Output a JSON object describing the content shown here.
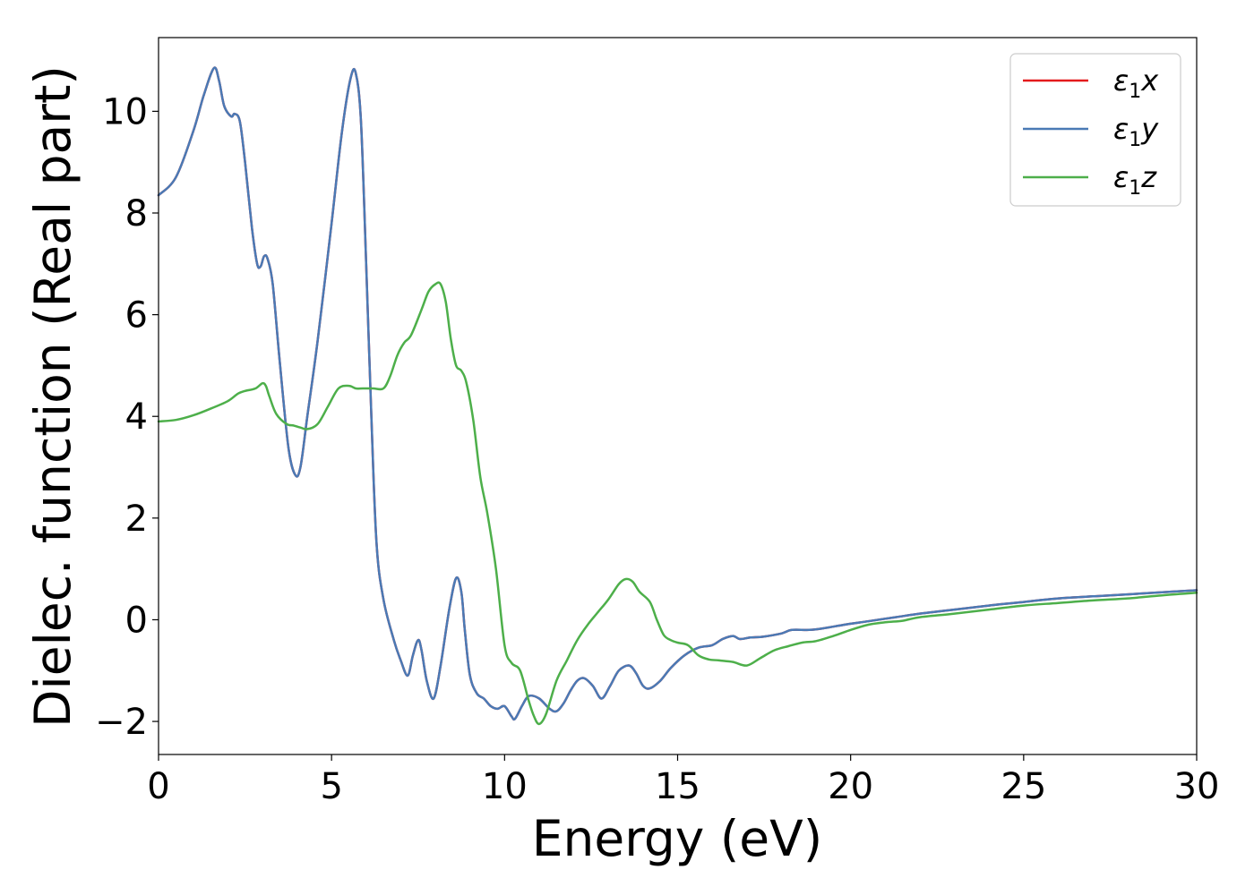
{
  "chart_data": {
    "type": "line",
    "title": "",
    "xlabel": "Energy (eV)",
    "ylabel": "Dielec. function (Real part)",
    "xlim": [
      0,
      30
    ],
    "ylim": [
      -2.65,
      11.45
    ],
    "xticks": [
      0,
      5,
      10,
      15,
      20,
      25,
      30
    ],
    "yticks": [
      -2,
      0,
      2,
      4,
      6,
      8,
      10
    ],
    "xtick_labels": [
      "0",
      "5",
      "10",
      "15",
      "20",
      "25",
      "30"
    ],
    "ytick_labels": [
      "−2",
      "0",
      "2",
      "4",
      "6",
      "8",
      "10"
    ],
    "grid": false,
    "legend_position": "top-right",
    "series": [
      {
        "name": "ε₁x",
        "legend": {
          "symbol": "ε",
          "sub": "1",
          "var": "x"
        },
        "color": "#e41a1c",
        "x": [
          0,
          0.5,
          1.0,
          1.3,
          1.6,
          1.75,
          1.9,
          2.1,
          2.2,
          2.35,
          2.5,
          2.7,
          2.85,
          2.95,
          3.05,
          3.15,
          3.3,
          3.5,
          3.75,
          3.95,
          4.1,
          4.3,
          4.6,
          5.0,
          5.3,
          5.55,
          5.7,
          5.85,
          6.0,
          6.15,
          6.3,
          6.5,
          6.8,
          7.0,
          7.2,
          7.35,
          7.5,
          7.6,
          7.75,
          7.95,
          8.15,
          8.4,
          8.6,
          8.75,
          8.85,
          9.0,
          9.2,
          9.4,
          9.6,
          9.8,
          10.0,
          10.2,
          10.3,
          10.5,
          10.7,
          11.0,
          11.3,
          11.5,
          11.7,
          11.9,
          12.1,
          12.3,
          12.55,
          12.8,
          13.05,
          13.3,
          13.6,
          13.8,
          14.0,
          14.2,
          14.5,
          14.8,
          15.2,
          15.6,
          16.0,
          16.3,
          16.6,
          16.8,
          17.1,
          17.5,
          18.0,
          18.3,
          18.8,
          19.2,
          19.8,
          20.5,
          21.3,
          22.0,
          23.0,
          24.0,
          25.0,
          26.0,
          27.0,
          28.0,
          29.0,
          30.0
        ],
        "y": [
          8.35,
          8.7,
          9.6,
          10.3,
          10.85,
          10.6,
          10.1,
          9.9,
          9.95,
          9.8,
          9.0,
          7.7,
          7.0,
          6.95,
          7.15,
          7.1,
          6.6,
          5.1,
          3.4,
          2.85,
          3.0,
          4.0,
          5.5,
          7.8,
          9.6,
          10.65,
          10.75,
          9.8,
          7.0,
          4.0,
          1.5,
          0.4,
          -0.4,
          -0.8,
          -1.1,
          -0.7,
          -0.4,
          -0.6,
          -1.2,
          -1.55,
          -0.9,
          0.2,
          0.82,
          0.55,
          -0.2,
          -1.1,
          -1.45,
          -1.55,
          -1.7,
          -1.75,
          -1.7,
          -1.9,
          -1.95,
          -1.7,
          -1.5,
          -1.55,
          -1.75,
          -1.8,
          -1.65,
          -1.4,
          -1.2,
          -1.15,
          -1.3,
          -1.55,
          -1.3,
          -1.0,
          -0.9,
          -1.05,
          -1.3,
          -1.35,
          -1.2,
          -0.95,
          -0.7,
          -0.55,
          -0.5,
          -0.38,
          -0.32,
          -0.38,
          -0.35,
          -0.33,
          -0.27,
          -0.2,
          -0.2,
          -0.17,
          -0.1,
          -0.03,
          0.05,
          0.12,
          0.2,
          0.28,
          0.35,
          0.42,
          0.46,
          0.5,
          0.54,
          0.58
        ]
      },
      {
        "name": "ε₁y",
        "legend": {
          "symbol": "ε",
          "sub": "1",
          "var": "y"
        },
        "color": "#4a7ab5",
        "x": [
          0,
          0.5,
          1.0,
          1.3,
          1.6,
          1.75,
          1.9,
          2.1,
          2.2,
          2.35,
          2.5,
          2.7,
          2.85,
          2.95,
          3.05,
          3.15,
          3.3,
          3.5,
          3.75,
          3.95,
          4.1,
          4.3,
          4.6,
          5.0,
          5.3,
          5.55,
          5.7,
          5.85,
          6.0,
          6.15,
          6.3,
          6.5,
          6.8,
          7.0,
          7.2,
          7.35,
          7.5,
          7.6,
          7.75,
          7.95,
          8.15,
          8.4,
          8.6,
          8.75,
          8.85,
          9.0,
          9.2,
          9.4,
          9.6,
          9.8,
          10.0,
          10.2,
          10.3,
          10.5,
          10.7,
          11.0,
          11.3,
          11.5,
          11.7,
          11.9,
          12.1,
          12.3,
          12.55,
          12.8,
          13.05,
          13.3,
          13.6,
          13.8,
          14.0,
          14.2,
          14.5,
          14.8,
          15.2,
          15.6,
          16.0,
          16.3,
          16.6,
          16.8,
          17.1,
          17.5,
          18.0,
          18.3,
          18.8,
          19.2,
          19.8,
          20.5,
          21.3,
          22.0,
          23.0,
          24.0,
          25.0,
          26.0,
          27.0,
          28.0,
          29.0,
          30.0
        ],
        "y": [
          8.35,
          8.7,
          9.6,
          10.3,
          10.85,
          10.6,
          10.1,
          9.9,
          9.95,
          9.8,
          9.0,
          7.7,
          7.0,
          6.95,
          7.15,
          7.1,
          6.6,
          5.1,
          3.4,
          2.85,
          3.0,
          4.0,
          5.5,
          7.8,
          9.6,
          10.65,
          10.75,
          9.8,
          7.0,
          4.0,
          1.5,
          0.4,
          -0.4,
          -0.8,
          -1.1,
          -0.7,
          -0.4,
          -0.6,
          -1.2,
          -1.55,
          -0.9,
          0.2,
          0.82,
          0.55,
          -0.2,
          -1.1,
          -1.45,
          -1.55,
          -1.7,
          -1.75,
          -1.7,
          -1.9,
          -1.95,
          -1.7,
          -1.5,
          -1.55,
          -1.75,
          -1.8,
          -1.65,
          -1.4,
          -1.2,
          -1.15,
          -1.3,
          -1.55,
          -1.3,
          -1.0,
          -0.9,
          -1.05,
          -1.3,
          -1.35,
          -1.2,
          -0.95,
          -0.7,
          -0.55,
          -0.5,
          -0.38,
          -0.32,
          -0.38,
          -0.35,
          -0.33,
          -0.27,
          -0.2,
          -0.2,
          -0.17,
          -0.1,
          -0.03,
          0.05,
          0.12,
          0.2,
          0.28,
          0.35,
          0.42,
          0.46,
          0.5,
          0.54,
          0.58
        ]
      },
      {
        "name": "ε₁z",
        "legend": {
          "symbol": "ε",
          "sub": "1",
          "var": "z"
        },
        "color": "#4daf4a",
        "x": [
          0,
          0.5,
          1.0,
          1.5,
          2.0,
          2.3,
          2.5,
          2.8,
          3.0,
          3.1,
          3.2,
          3.4,
          3.7,
          3.9,
          4.1,
          4.3,
          4.6,
          4.9,
          5.2,
          5.5,
          5.7,
          5.9,
          6.2,
          6.5,
          6.7,
          6.9,
          7.1,
          7.3,
          7.6,
          7.8,
          8.0,
          8.15,
          8.3,
          8.45,
          8.6,
          8.75,
          8.9,
          9.1,
          9.3,
          9.5,
          9.75,
          10.0,
          10.2,
          10.45,
          10.7,
          10.85,
          11.0,
          11.2,
          11.5,
          11.8,
          12.1,
          12.4,
          12.7,
          13.0,
          13.3,
          13.5,
          13.7,
          13.9,
          14.2,
          14.4,
          14.6,
          14.8,
          15.0,
          15.3,
          15.6,
          15.9,
          16.2,
          16.6,
          17.0,
          17.4,
          17.8,
          18.2,
          18.6,
          19.0,
          19.5,
          20.0,
          20.5,
          21.0,
          21.5,
          22.0,
          23.0,
          24.0,
          25.0,
          26.0,
          27.0,
          28.0,
          29.0,
          30.0
        ],
        "y": [
          3.9,
          3.93,
          4.02,
          4.15,
          4.3,
          4.45,
          4.5,
          4.55,
          4.65,
          4.6,
          4.4,
          4.05,
          3.85,
          3.82,
          3.78,
          3.75,
          3.85,
          4.2,
          4.55,
          4.6,
          4.55,
          4.55,
          4.55,
          4.55,
          4.8,
          5.2,
          5.45,
          5.6,
          6.1,
          6.45,
          6.6,
          6.6,
          6.25,
          5.5,
          5.0,
          4.9,
          4.65,
          3.9,
          2.8,
          2.1,
          1.0,
          -0.5,
          -0.85,
          -1.0,
          -1.6,
          -1.9,
          -2.05,
          -1.85,
          -1.2,
          -0.8,
          -0.4,
          -0.1,
          0.15,
          0.4,
          0.7,
          0.8,
          0.75,
          0.55,
          0.35,
          0.0,
          -0.3,
          -0.4,
          -0.45,
          -0.5,
          -0.7,
          -0.78,
          -0.8,
          -0.83,
          -0.9,
          -0.75,
          -0.6,
          -0.52,
          -0.45,
          -0.42,
          -0.32,
          -0.2,
          -0.1,
          -0.05,
          -0.02,
          0.05,
          0.12,
          0.2,
          0.28,
          0.33,
          0.38,
          0.42,
          0.48,
          0.53
        ]
      }
    ]
  }
}
